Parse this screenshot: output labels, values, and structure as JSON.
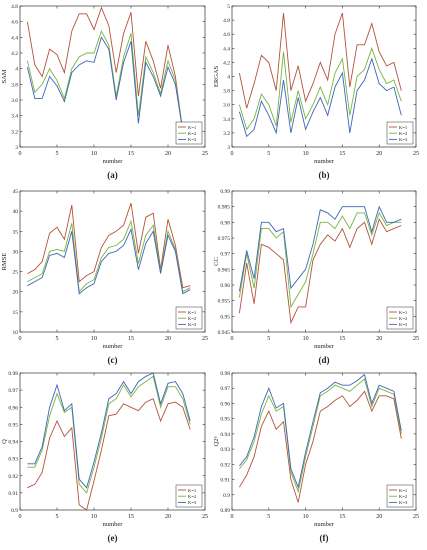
{
  "colors": {
    "k1": "#b5523b",
    "k2": "#77b443",
    "k3": "#3f64b7",
    "axis": "#333333"
  },
  "xlabel_common": "number",
  "chart_data": [
    {
      "panel_label": "(a)",
      "type": "line",
      "ylabel": "SAM",
      "xlabel": "number",
      "xlim": [
        0,
        25
      ],
      "ylim": [
        3,
        4.8
      ],
      "xticks": [
        "0",
        "5",
        "10",
        "15",
        "20",
        "25"
      ],
      "yticks": [
        "3",
        "3.2",
        "3.4",
        "3.6",
        "3.8",
        "4",
        "4.2",
        "4.4",
        "4.6",
        "4.8"
      ],
      "x": [
        1,
        2,
        3,
        4,
        5,
        6,
        7,
        8,
        9,
        10,
        11,
        12,
        13,
        14,
        15,
        16,
        17,
        18,
        19,
        20,
        21,
        22,
        23
      ],
      "series": [
        {
          "name": "K=1",
          "values": [
            4.6,
            4.05,
            3.9,
            4.25,
            4.18,
            3.95,
            4.48,
            4.7,
            4.7,
            4.5,
            4.78,
            4.55,
            3.95,
            4.45,
            4.72,
            3.65,
            4.35,
            4.1,
            3.75,
            4.3,
            3.9,
            3.2,
            3.2
          ]
        },
        {
          "name": "K=2",
          "values": [
            4.1,
            3.7,
            3.8,
            4.0,
            3.85,
            3.62,
            4.0,
            4.15,
            4.2,
            4.2,
            4.48,
            4.3,
            3.65,
            4.15,
            4.45,
            3.4,
            4.15,
            3.95,
            3.68,
            4.1,
            3.85,
            3.2,
            3.2
          ]
        },
        {
          "name": "K=3",
          "values": [
            4.02,
            3.62,
            3.62,
            3.9,
            3.78,
            3.58,
            3.95,
            4.05,
            4.1,
            4.08,
            4.4,
            4.25,
            3.6,
            4.08,
            4.35,
            3.3,
            4.08,
            3.9,
            3.65,
            4.02,
            3.8,
            3.2,
            3.2
          ]
        }
      ]
    },
    {
      "panel_label": "(b)",
      "type": "line",
      "ylabel": "ERGAS",
      "xlabel": "number",
      "xlim": [
        0,
        25
      ],
      "ylim": [
        3,
        5
      ],
      "xticks": [
        "0",
        "5",
        "10",
        "15",
        "20",
        "25"
      ],
      "yticks": [
        "3",
        "3.2",
        "3.4",
        "3.6",
        "3.8",
        "4",
        "4.2",
        "4.4",
        "4.6",
        "4.8",
        "5"
      ],
      "x": [
        1,
        2,
        3,
        4,
        5,
        6,
        7,
        8,
        9,
        10,
        11,
        12,
        13,
        14,
        15,
        16,
        17,
        18,
        19,
        20,
        21,
        22,
        23
      ],
      "series": [
        {
          "name": "K=1",
          "values": [
            4.05,
            3.55,
            3.9,
            4.3,
            4.2,
            3.8,
            4.9,
            3.8,
            4.15,
            3.65,
            3.9,
            4.2,
            3.95,
            4.6,
            4.9,
            3.85,
            4.45,
            4.45,
            4.75,
            4.35,
            4.15,
            4.2,
            3.8
          ]
        },
        {
          "name": "K=2",
          "values": [
            3.6,
            3.25,
            3.4,
            3.75,
            3.6,
            3.3,
            4.35,
            3.35,
            3.8,
            3.4,
            3.6,
            3.85,
            3.6,
            4.05,
            4.25,
            3.45,
            4.0,
            4.1,
            4.4,
            4.1,
            3.9,
            3.95,
            3.65
          ]
        },
        {
          "name": "K=3",
          "values": [
            3.5,
            3.15,
            3.25,
            3.65,
            3.45,
            3.2,
            3.95,
            3.2,
            3.7,
            3.25,
            3.5,
            3.7,
            3.45,
            3.85,
            4.05,
            3.2,
            3.8,
            3.95,
            4.25,
            3.9,
            3.8,
            3.85,
            3.45
          ]
        }
      ]
    },
    {
      "panel_label": "(c)",
      "type": "line",
      "ylabel": "RMSE",
      "xlabel": "number",
      "xlim": [
        0,
        25
      ],
      "ylim": [
        10,
        45
      ],
      "xticks": [
        "0",
        "5",
        "10",
        "15",
        "20",
        "25"
      ],
      "yticks": [
        "10",
        "15",
        "20",
        "25",
        "30",
        "35",
        "40",
        "45"
      ],
      "x": [
        1,
        2,
        3,
        4,
        5,
        6,
        7,
        8,
        9,
        10,
        11,
        12,
        13,
        14,
        15,
        16,
        17,
        18,
        19,
        20,
        21,
        22,
        23
      ],
      "series": [
        {
          "name": "K=1",
          "values": [
            24.5,
            25.5,
            27.5,
            34.5,
            36.0,
            33.0,
            41.5,
            22.5,
            24.0,
            25.0,
            31.0,
            34.0,
            35.0,
            36.5,
            42.0,
            29.5,
            38.5,
            39.5,
            25.5,
            38.0,
            31.5,
            21.0,
            21.5
          ]
        },
        {
          "name": "K=2",
          "values": [
            22.5,
            23.5,
            24.5,
            30.0,
            30.5,
            30.0,
            37.0,
            20.0,
            22.0,
            23.0,
            28.5,
            31.0,
            31.5,
            33.0,
            37.5,
            27.0,
            34.0,
            36.5,
            25.0,
            35.0,
            30.5,
            20.0,
            21.0
          ]
        },
        {
          "name": "K=3",
          "values": [
            21.5,
            22.5,
            23.5,
            29.0,
            29.5,
            28.5,
            35.0,
            19.5,
            21.0,
            22.0,
            27.5,
            29.5,
            30.0,
            31.5,
            35.5,
            25.5,
            32.0,
            35.0,
            24.5,
            34.0,
            30.0,
            19.5,
            20.5
          ]
        }
      ]
    },
    {
      "panel_label": "(d)",
      "type": "line",
      "ylabel": "CC",
      "xlabel": "number",
      "xlim": [
        0,
        25
      ],
      "ylim": [
        0.945,
        0.99
      ],
      "xticks": [
        "0",
        "5",
        "10",
        "15",
        "20",
        "25"
      ],
      "yticks": [
        "0.945",
        "0.95",
        "0.955",
        "0.96",
        "0.965",
        "0.97",
        "0.975",
        "0.98",
        "0.985",
        "0.99"
      ],
      "x": [
        1,
        2,
        3,
        4,
        5,
        6,
        7,
        8,
        9,
        10,
        11,
        12,
        13,
        14,
        15,
        16,
        17,
        18,
        19,
        20,
        21,
        22,
        23
      ],
      "series": [
        {
          "name": "K=1",
          "values": [
            0.951,
            0.967,
            0.954,
            0.973,
            0.972,
            0.97,
            0.968,
            0.948,
            0.953,
            0.953,
            0.968,
            0.973,
            0.976,
            0.974,
            0.978,
            0.972,
            0.978,
            0.98,
            0.973,
            0.981,
            0.977,
            0.978,
            0.979
          ]
        },
        {
          "name": "K=2",
          "values": [
            0.956,
            0.97,
            0.959,
            0.978,
            0.978,
            0.975,
            0.977,
            0.953,
            0.957,
            0.961,
            0.97,
            0.98,
            0.98,
            0.978,
            0.982,
            0.978,
            0.983,
            0.983,
            0.976,
            0.983,
            0.979,
            0.98,
            0.98
          ]
        },
        {
          "name": "K=3",
          "values": [
            0.958,
            0.971,
            0.962,
            0.98,
            0.98,
            0.977,
            0.978,
            0.959,
            0.962,
            0.965,
            0.973,
            0.984,
            0.983,
            0.981,
            0.985,
            0.985,
            0.985,
            0.985,
            0.977,
            0.985,
            0.98,
            0.98,
            0.981
          ]
        }
      ]
    },
    {
      "panel_label": "(e)",
      "type": "line",
      "ylabel": "Q",
      "xlabel": "number",
      "xlim": [
        0,
        25
      ],
      "ylim": [
        0.9,
        0.98
      ],
      "xticks": [
        "0",
        "5",
        "10",
        "15",
        "20",
        "25"
      ],
      "yticks": [
        "0.9",
        "0.91",
        "0.92",
        "0.93",
        "0.94",
        "0.95",
        "0.96",
        "0.97",
        "0.98"
      ],
      "x": [
        1,
        2,
        3,
        4,
        5,
        6,
        7,
        8,
        9,
        10,
        11,
        12,
        13,
        14,
        15,
        16,
        17,
        18,
        19,
        20,
        21,
        22,
        23
      ],
      "series": [
        {
          "name": "K=1",
          "values": [
            0.913,
            0.915,
            0.922,
            0.942,
            0.952,
            0.943,
            0.948,
            0.903,
            0.9,
            0.917,
            0.935,
            0.955,
            0.956,
            0.962,
            0.96,
            0.958,
            0.963,
            0.965,
            0.952,
            0.962,
            0.963,
            0.96,
            0.947
          ]
        },
        {
          "name": "K=2",
          "values": [
            0.925,
            0.925,
            0.935,
            0.955,
            0.968,
            0.957,
            0.96,
            0.915,
            0.91,
            0.925,
            0.942,
            0.962,
            0.965,
            0.973,
            0.966,
            0.972,
            0.975,
            0.978,
            0.96,
            0.972,
            0.972,
            0.965,
            0.95
          ]
        },
        {
          "name": "K=3",
          "values": [
            0.927,
            0.927,
            0.937,
            0.96,
            0.973,
            0.958,
            0.962,
            0.918,
            0.913,
            0.928,
            0.945,
            0.965,
            0.968,
            0.975,
            0.968,
            0.975,
            0.978,
            0.98,
            0.962,
            0.974,
            0.975,
            0.968,
            0.952
          ]
        }
      ]
    },
    {
      "panel_label": "(f)",
      "type": "line",
      "ylabel": "Q2ⁿ",
      "xlabel": "number",
      "xlim": [
        0,
        25
      ],
      "ylim": [
        0.89,
        0.98
      ],
      "xticks": [
        "0",
        "5",
        "10",
        "15",
        "20",
        "25"
      ],
      "yticks": [
        "0.89",
        "0.9",
        "0.91",
        "0.92",
        "0.93",
        "0.94",
        "0.95",
        "0.96",
        "0.97",
        "0.98"
      ],
      "x": [
        1,
        2,
        3,
        4,
        5,
        6,
        7,
        8,
        9,
        10,
        11,
        12,
        13,
        14,
        15,
        16,
        17,
        18,
        19,
        20,
        21,
        22,
        23
      ],
      "series": [
        {
          "name": "K=1",
          "values": [
            0.905,
            0.913,
            0.925,
            0.945,
            0.955,
            0.943,
            0.948,
            0.91,
            0.895,
            0.92,
            0.935,
            0.955,
            0.958,
            0.962,
            0.965,
            0.958,
            0.962,
            0.968,
            0.955,
            0.965,
            0.965,
            0.963,
            0.937
          ]
        },
        {
          "name": "K=2",
          "values": [
            0.917,
            0.923,
            0.935,
            0.953,
            0.965,
            0.955,
            0.958,
            0.915,
            0.902,
            0.925,
            0.945,
            0.965,
            0.968,
            0.972,
            0.97,
            0.968,
            0.972,
            0.976,
            0.958,
            0.97,
            0.968,
            0.966,
            0.94
          ]
        },
        {
          "name": "K=3",
          "values": [
            0.919,
            0.925,
            0.938,
            0.958,
            0.97,
            0.957,
            0.96,
            0.917,
            0.905,
            0.928,
            0.948,
            0.967,
            0.97,
            0.974,
            0.972,
            0.972,
            0.975,
            0.979,
            0.96,
            0.972,
            0.97,
            0.968,
            0.942
          ]
        }
      ]
    }
  ]
}
